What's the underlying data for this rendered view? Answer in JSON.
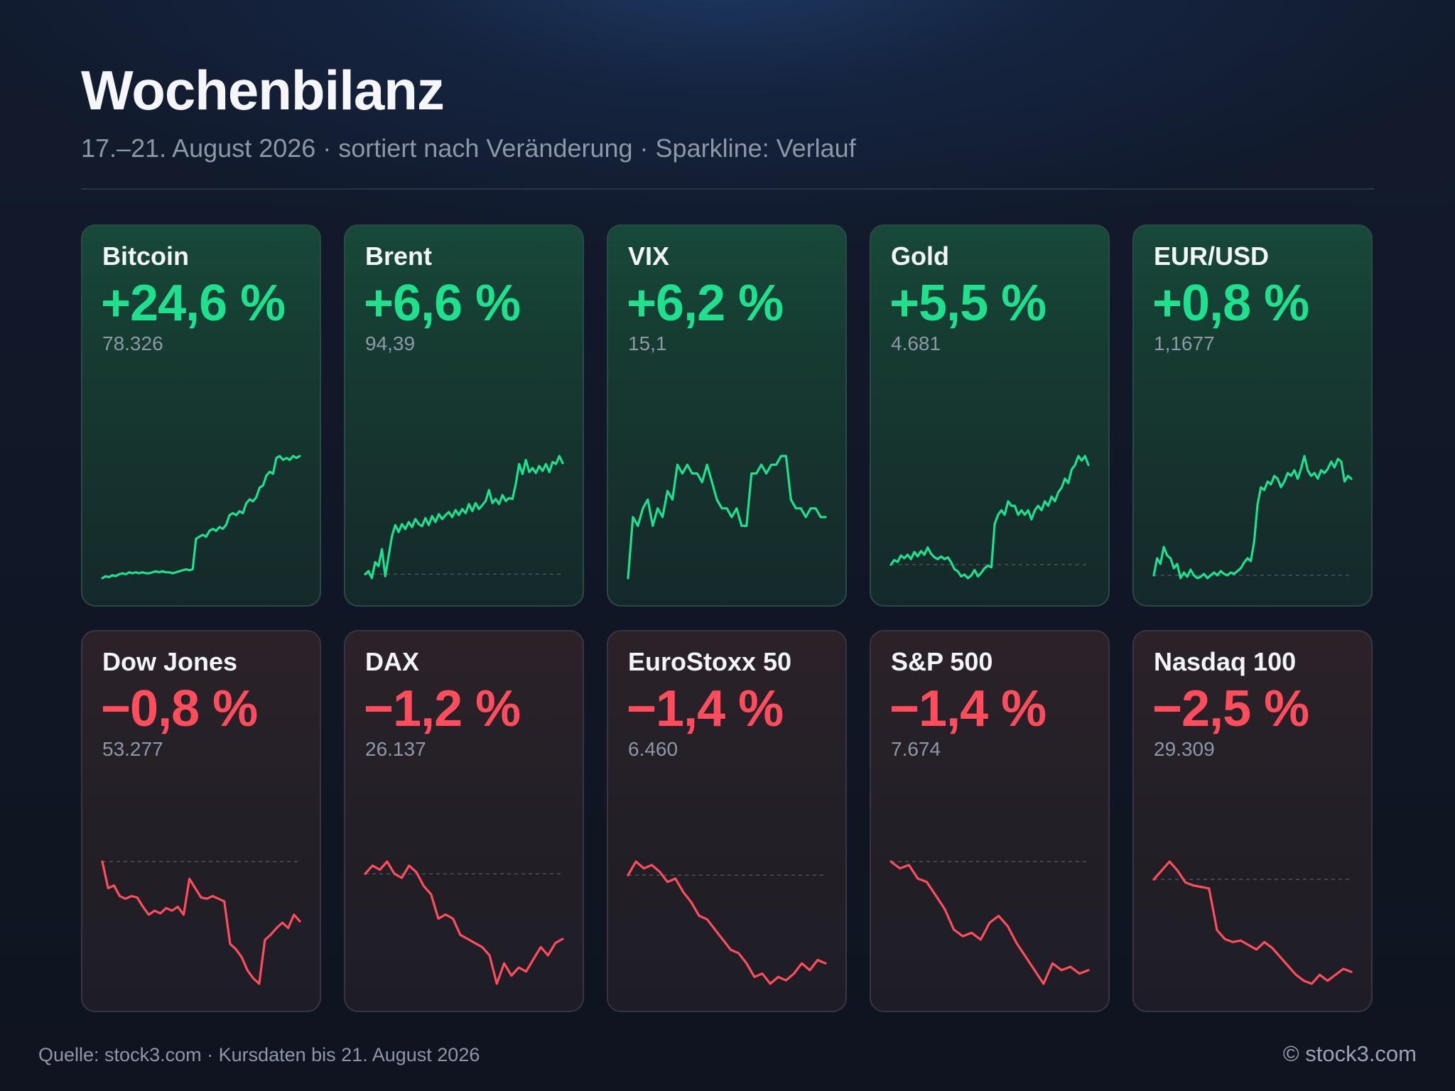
{
  "header": {
    "title": "Wochenbilanz",
    "subtitle": "17.–21. August 2026 · sortiert nach Veränderung · Sparkline: Verlauf"
  },
  "footer": {
    "source": "Quelle: stock3.com · Kursdaten bis 21. August 2026",
    "copyright": "© stock3.com"
  },
  "colors": {
    "positive": "#1fe08d",
    "negative": "#ff4d5e",
    "baseline": "#5c6676"
  },
  "chart_data": {
    "type": "line",
    "title": "Wochenbilanz",
    "subtitle": "17.–21. August 2026 · sortiert nach Veränderung · Sparkline: Verlauf",
    "series": [
      {
        "name": "Bitcoin",
        "change_label": "+24,6 %",
        "change": 24.6,
        "last_label": "78.326",
        "values": [
          0,
          1,
          0.5,
          1.5,
          1,
          2,
          2.5,
          2,
          3,
          2.5,
          3,
          2.5,
          3,
          2.5,
          2.5,
          3,
          3.5,
          3,
          3.5,
          3,
          3,
          2.5,
          3,
          3.5,
          4,
          4.5,
          4,
          4.5,
          20,
          21,
          22,
          21,
          24,
          25,
          24,
          26,
          25,
          27,
          32,
          33,
          32,
          34,
          33,
          38,
          40,
          39,
          41,
          46,
          47,
          52,
          54,
          53,
          61,
          62,
          60,
          61,
          60,
          62,
          61,
          62
        ],
        "baseline_visible": false
      },
      {
        "name": "Brent",
        "change_label": "+6,6 %",
        "change": 6.6,
        "last_label": "94,39",
        "values": [
          0,
          0.3,
          -0.4,
          1.2,
          0.8,
          2.5,
          -0.2,
          1.8,
          3.8,
          4.9,
          4.2,
          5.0,
          4.5,
          5.2,
          4.7,
          5.5,
          5.0,
          4.8,
          5.6,
          4.9,
          5.8,
          5.2,
          6.0,
          5.5,
          5.9,
          6.2,
          5.7,
          6.4,
          5.9,
          6.5,
          6.1,
          7.0,
          6.3,
          7.1,
          6.5,
          6.9,
          7.3,
          8.4,
          7.1,
          7.5,
          7.0,
          7.9,
          7.3,
          7.6,
          7.5,
          9.0,
          11.0,
          10.0,
          11.4,
          10.2,
          10.6,
          10.1,
          10.8,
          10.3,
          11.0,
          10.2,
          11.2,
          11.0,
          11.8,
          11.1
        ],
        "baseline_visible": true
      },
      {
        "name": "VIX",
        "change_label": "+6,2 %",
        "change": 6.2,
        "last_label": "15,1",
        "values": [
          0,
          7,
          6,
          8,
          9,
          6,
          8,
          7,
          10,
          9,
          13,
          12,
          13,
          12,
          12,
          11,
          13,
          11,
          9,
          8,
          8,
          7,
          8,
          6,
          6,
          12,
          12,
          13,
          12,
          13,
          13,
          14,
          14,
          9,
          8,
          8,
          7,
          8,
          8,
          7,
          7
        ],
        "baseline_visible": false
      },
      {
        "name": "Gold",
        "change_label": "+5,5 %",
        "change": 5.5,
        "last_label": "4.681",
        "values": [
          0,
          1,
          0.6,
          2,
          1.4,
          2.2,
          1.2,
          2.8,
          1.8,
          3,
          2.2,
          3.8,
          2.4,
          1.6,
          1.2,
          1.8,
          1.2,
          1.6,
          0.5,
          -1,
          -1.5,
          -2.6,
          -2.2,
          -3,
          -2.4,
          -1.2,
          -2.6,
          -1.8,
          -0.8,
          -0.2,
          -0.6,
          9,
          11,
          12,
          11,
          14,
          13,
          13,
          11,
          12,
          11,
          12,
          10,
          12,
          13,
          12,
          14,
          13,
          15,
          14,
          16,
          17,
          19,
          18,
          21,
          22,
          24,
          23,
          24,
          22
        ],
        "baseline_visible": true
      },
      {
        "name": "EUR/USD",
        "change_label": "+0,8 %",
        "change": 0.8,
        "last_label": "1,1677",
        "values": [
          0,
          0.12,
          0.08,
          0.2,
          0.14,
          0.12,
          0.05,
          0.08,
          -0.02,
          0.02,
          -0.01,
          0.04,
          0.0,
          -0.02,
          -0.01,
          0.01,
          -0.02,
          0.0,
          0.02,
          0.0,
          0.03,
          0.01,
          0.0,
          0.02,
          0.01,
          0.03,
          0.05,
          0.09,
          0.12,
          0.1,
          0.24,
          0.5,
          0.62,
          0.6,
          0.66,
          0.64,
          0.7,
          0.68,
          0.62,
          0.66,
          0.72,
          0.7,
          0.74,
          0.68,
          0.75,
          0.84,
          0.74,
          0.7,
          0.72,
          0.68,
          0.74,
          0.72,
          0.75,
          0.8,
          0.76,
          0.82,
          0.8,
          0.66,
          0.7,
          0.68
        ],
        "baseline_visible": true
      },
      {
        "name": "Dow Jones",
        "change_label": "−0,8 %",
        "change": -0.8,
        "last_label": "53.277",
        "values": [
          0,
          -0.2,
          -0.18,
          -0.26,
          -0.28,
          -0.26,
          -0.27,
          -0.34,
          -0.4,
          -0.37,
          -0.39,
          -0.35,
          -0.37,
          -0.34,
          -0.4,
          -0.13,
          -0.2,
          -0.27,
          -0.28,
          -0.26,
          -0.28,
          -0.3,
          -0.62,
          -0.66,
          -0.72,
          -0.82,
          -0.88,
          -0.92,
          -0.59,
          -0.55,
          -0.5,
          -0.46,
          -0.5,
          -0.4,
          -0.45
        ],
        "baseline_visible": true
      },
      {
        "name": "DAX",
        "change_label": "−1,2 %",
        "change": -1.2,
        "last_label": "26.137",
        "values": [
          0,
          0.1,
          0.05,
          0.15,
          0.0,
          -0.05,
          0.1,
          0.02,
          -0.15,
          -0.25,
          -0.55,
          -0.5,
          -0.55,
          -0.75,
          -0.8,
          -0.85,
          -0.9,
          -1.0,
          -1.35,
          -1.1,
          -1.25,
          -1.15,
          -1.2,
          -1.05,
          -0.9,
          -1.0,
          -0.85,
          -0.8
        ],
        "baseline_visible": true
      },
      {
        "name": "EuroStoxx 50",
        "change_label": "−1,4 %",
        "change": -1.4,
        "last_label": "6.460",
        "values": [
          0,
          0.2,
          0.1,
          0.15,
          0.05,
          -0.1,
          -0.05,
          -0.25,
          -0.4,
          -0.6,
          -0.65,
          -0.8,
          -0.95,
          -1.1,
          -1.15,
          -1.3,
          -1.5,
          -1.45,
          -1.6,
          -1.5,
          -1.55,
          -1.45,
          -1.3,
          -1.4,
          -1.25,
          -1.3
        ],
        "baseline_visible": true
      },
      {
        "name": "S&P 500",
        "change_label": "−1,4 %",
        "change": -1.4,
        "last_label": "7.674",
        "values": [
          0,
          -0.1,
          -0.05,
          -0.25,
          -0.3,
          -0.5,
          -0.7,
          -1.0,
          -1.1,
          -1.05,
          -1.15,
          -0.9,
          -0.8,
          -0.95,
          -1.2,
          -1.4,
          -1.6,
          -1.8,
          -1.5,
          -1.6,
          -1.55,
          -1.65,
          -1.6
        ],
        "baseline_visible": true
      },
      {
        "name": "Nasdaq 100",
        "change_label": "−2,5 %",
        "change": -2.5,
        "last_label": "29.309",
        "values": [
          0,
          0.3,
          0.6,
          0.3,
          -0.1,
          -0.2,
          -0.25,
          -0.3,
          -1.7,
          -2.0,
          -2.1,
          -2.05,
          -2.2,
          -2.35,
          -2.1,
          -2.3,
          -2.6,
          -2.9,
          -3.2,
          -3.4,
          -3.5,
          -3.2,
          -3.4,
          -3.2,
          -3.0,
          -3.1
        ],
        "baseline_visible": true
      }
    ]
  }
}
